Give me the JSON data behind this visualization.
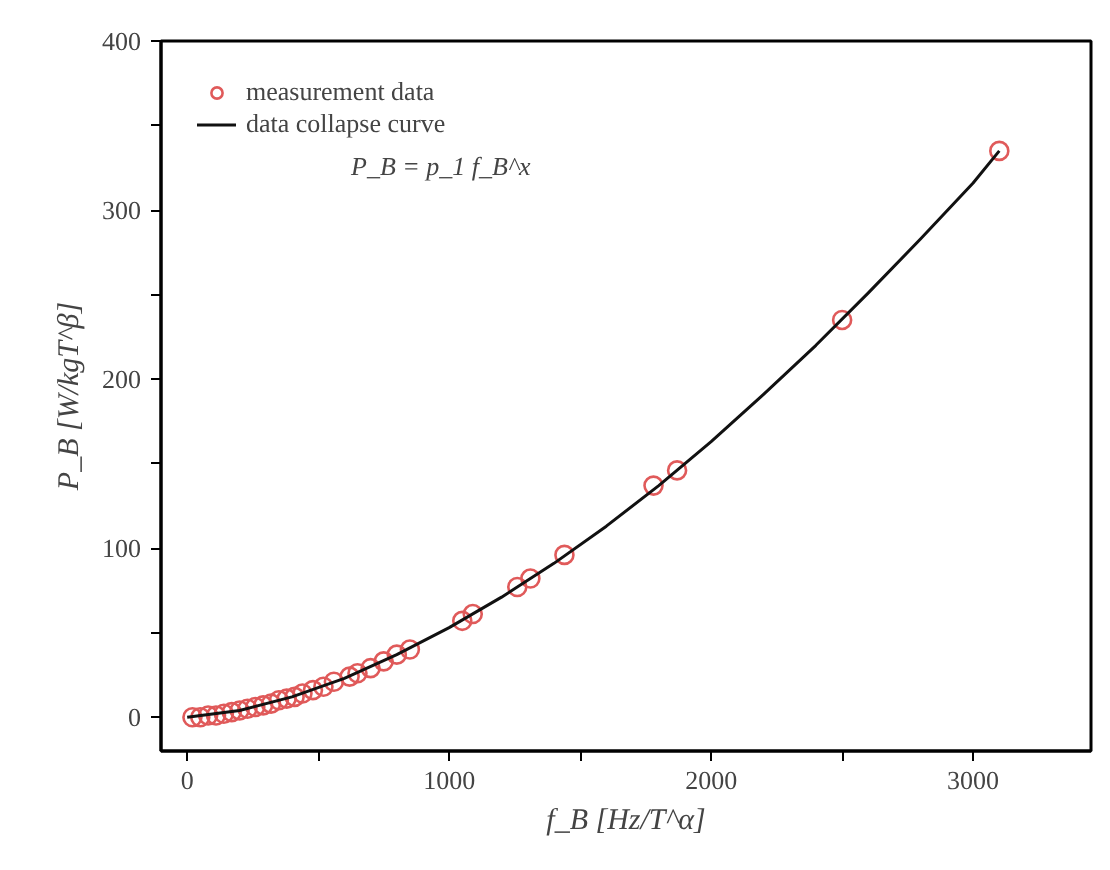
{
  "chart_data": {
    "type": "scatter",
    "xlabel": "f_B [Hz/T^α]",
    "ylabel": "P_B [W/kgT^β]",
    "annotations": [
      "P_B = p_1 f_B^x"
    ],
    "xlim": [
      -100,
      3450
    ],
    "ylim": [
      -20,
      400
    ],
    "xticks": [
      0,
      {
        "value": 500,
        "label": null
      },
      1000,
      {
        "value": 1500,
        "label": null
      },
      2000,
      {
        "value": 2500,
        "label": null
      },
      3000
    ],
    "yticks": [
      0,
      {
        "value": 50,
        "label": null
      },
      100,
      {
        "value": 150,
        "label": null
      },
      200,
      {
        "value": 250,
        "label": null
      },
      300,
      {
        "value": 350,
        "label": null
      },
      400
    ],
    "grid": false,
    "legend": "top left",
    "series": [
      {
        "name": "measurement data",
        "marker": "circle",
        "color": "#e05a5a",
        "x": [
          20,
          50,
          80,
          110,
          140,
          170,
          200,
          230,
          260,
          290,
          320,
          350,
          380,
          410,
          440,
          480,
          520,
          560,
          620,
          650,
          700,
          750,
          800,
          850,
          1050,
          1090,
          1260,
          1310,
          1440,
          1780,
          1870,
          2500,
          3100
        ],
        "values": [
          0,
          0,
          1,
          1,
          2,
          3,
          4,
          5,
          6,
          7,
          8,
          10,
          11,
          12,
          14,
          16,
          18,
          21,
          24,
          26,
          29,
          33,
          37,
          40,
          57,
          61,
          77,
          82,
          96,
          137,
          146,
          235,
          335
        ]
      },
      {
        "name": "data collapse curve",
        "type": "line",
        "color": "#111111",
        "line_style": "solid",
        "x": [
          0,
          200,
          400,
          600,
          800,
          1000,
          1200,
          1400,
          1600,
          1800,
          2000,
          2200,
          2400,
          2600,
          2800,
          3000,
          3100
        ],
        "values": [
          0,
          4,
          12,
          23,
          37,
          53,
          71,
          91,
          113,
          137,
          163,
          191,
          220,
          251,
          283,
          316,
          335
        ]
      }
    ]
  }
}
